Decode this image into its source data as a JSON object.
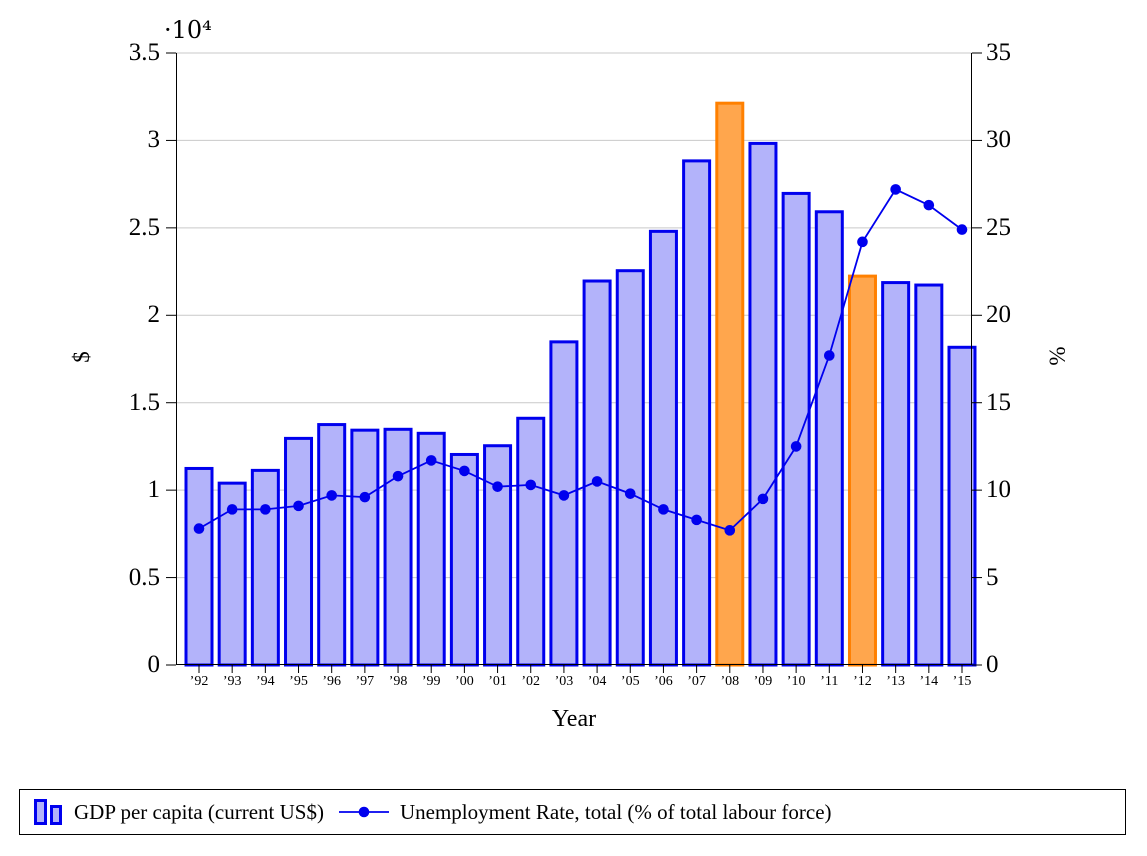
{
  "colors": {
    "bar_fill": "#b3b3fa",
    "bar_border": "#0000ee",
    "highlight_fill": "#ffa64d",
    "highlight_border": "#ff8000",
    "line_color": "#0000ee",
    "grid_color": "#c9c9c9",
    "axis_color": "#000000"
  },
  "chart_data": {
    "type": "bar",
    "combo": "bar+line dual axis",
    "title": "",
    "xlabel": "Year",
    "grid": true,
    "legend_position": "bottom",
    "categories": [
      "’92",
      "’93",
      "’94",
      "’95",
      "’96",
      "’97",
      "’98",
      "’99",
      "’00",
      "’01",
      "’02",
      "’03",
      "’04",
      "’05",
      "’06",
      "’07",
      "’08",
      "’09",
      "’10",
      "’11",
      "’12",
      "’13",
      "’14",
      "’15"
    ],
    "series": [
      {
        "name": "GDP per capita (current US$)",
        "type": "bar",
        "axis": "left",
        "values": [
          11240,
          10400,
          11130,
          12960,
          13750,
          13430,
          13480,
          13250,
          12040,
          12540,
          14110,
          18480,
          21960,
          22550,
          24800,
          28830,
          32130,
          29830,
          26970,
          25920,
          22240,
          21870,
          21730,
          18170
        ],
        "highlight_indices": [
          16,
          20
        ]
      },
      {
        "name": "Unemployment Rate, total (% of total labour force)",
        "type": "line",
        "axis": "right",
        "values": [
          7.8,
          8.9,
          8.9,
          9.1,
          9.7,
          9.6,
          10.8,
          11.7,
          11.1,
          10.2,
          10.3,
          9.7,
          10.5,
          9.8,
          8.9,
          8.3,
          7.7,
          9.5,
          12.5,
          17.7,
          24.2,
          27.2,
          26.3,
          24.9
        ]
      }
    ],
    "left_axis": {
      "label": "$",
      "exponent": "·10⁴",
      "ylim": [
        0,
        35000
      ],
      "tick_step": 5000,
      "tick_labels": [
        "0",
        "0.5",
        "1",
        "1.5",
        "2",
        "2.5",
        "3",
        "3.5"
      ]
    },
    "right_axis": {
      "label": "%",
      "ylim": [
        0,
        35
      ],
      "tick_step": 5,
      "tick_labels": [
        "0",
        "5",
        "10",
        "15",
        "20",
        "25",
        "30",
        "35"
      ]
    }
  }
}
